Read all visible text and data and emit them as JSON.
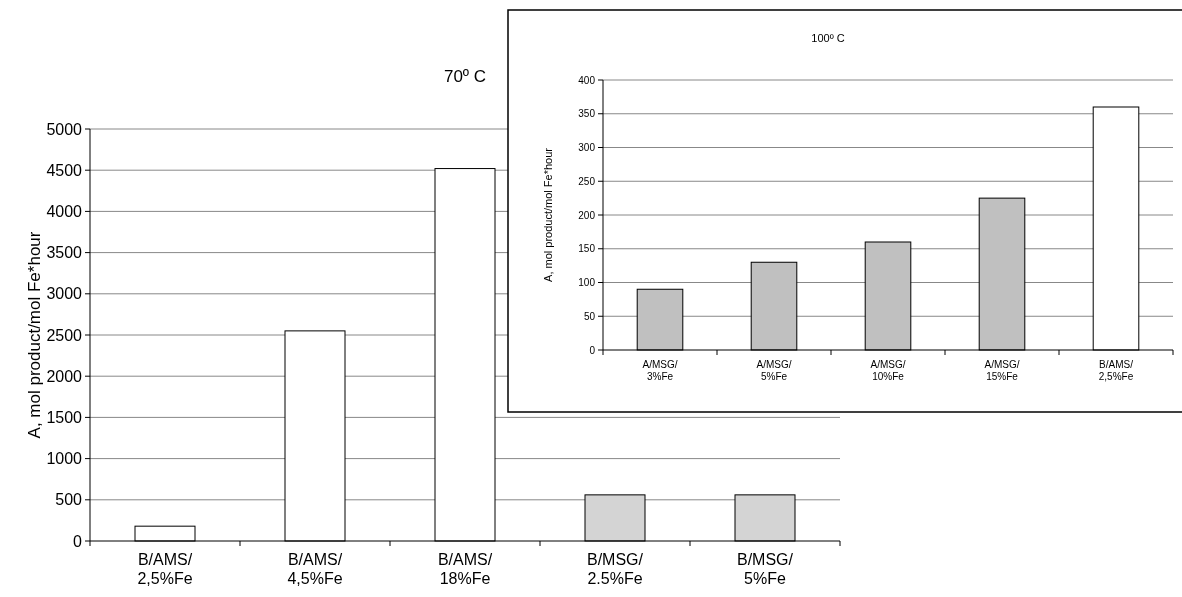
{
  "chart_data": [
    {
      "type": "bar",
      "title": "70º C",
      "ylabel": "A, mol product/mol Fe*hour",
      "categories": [
        "B/AMS/\n2,5%Fe",
        "B/AMS/\n4,5%Fe",
        "B/AMS/\n18%Fe",
        "B/MSG/\n2.5%Fe",
        "B/MSG/\n5%Fe"
      ],
      "values": [
        180,
        2550,
        4520,
        560,
        560
      ],
      "colors": [
        "#ffffff",
        "#ffffff",
        "#ffffff",
        "#d4d4d4",
        "#d4d4d4"
      ],
      "ylim": [
        0,
        5000
      ],
      "yticks": [
        0,
        500,
        1000,
        1500,
        2000,
        2500,
        3000,
        3500,
        4000,
        4500,
        5000
      ],
      "grid": "y"
    },
    {
      "type": "bar",
      "title": "100º C",
      "ylabel": "A, mol product/mol Fe*hour",
      "categories": [
        "A/MSG/\n3%Fe",
        "A/MSG/\n5%Fe",
        "A/MSG/\n10%Fe",
        "A/MSG/\n15%Fe",
        "B/AMS/\n2,5%Fe"
      ],
      "values": [
        90,
        130,
        160,
        225,
        360
      ],
      "colors": [
        "#c0c0c0",
        "#c0c0c0",
        "#c0c0c0",
        "#c0c0c0",
        "#ffffff"
      ],
      "ylim": [
        0,
        400
      ],
      "yticks": [
        0,
        50,
        100,
        150,
        200,
        250,
        300,
        350,
        400
      ],
      "grid": "y"
    }
  ]
}
